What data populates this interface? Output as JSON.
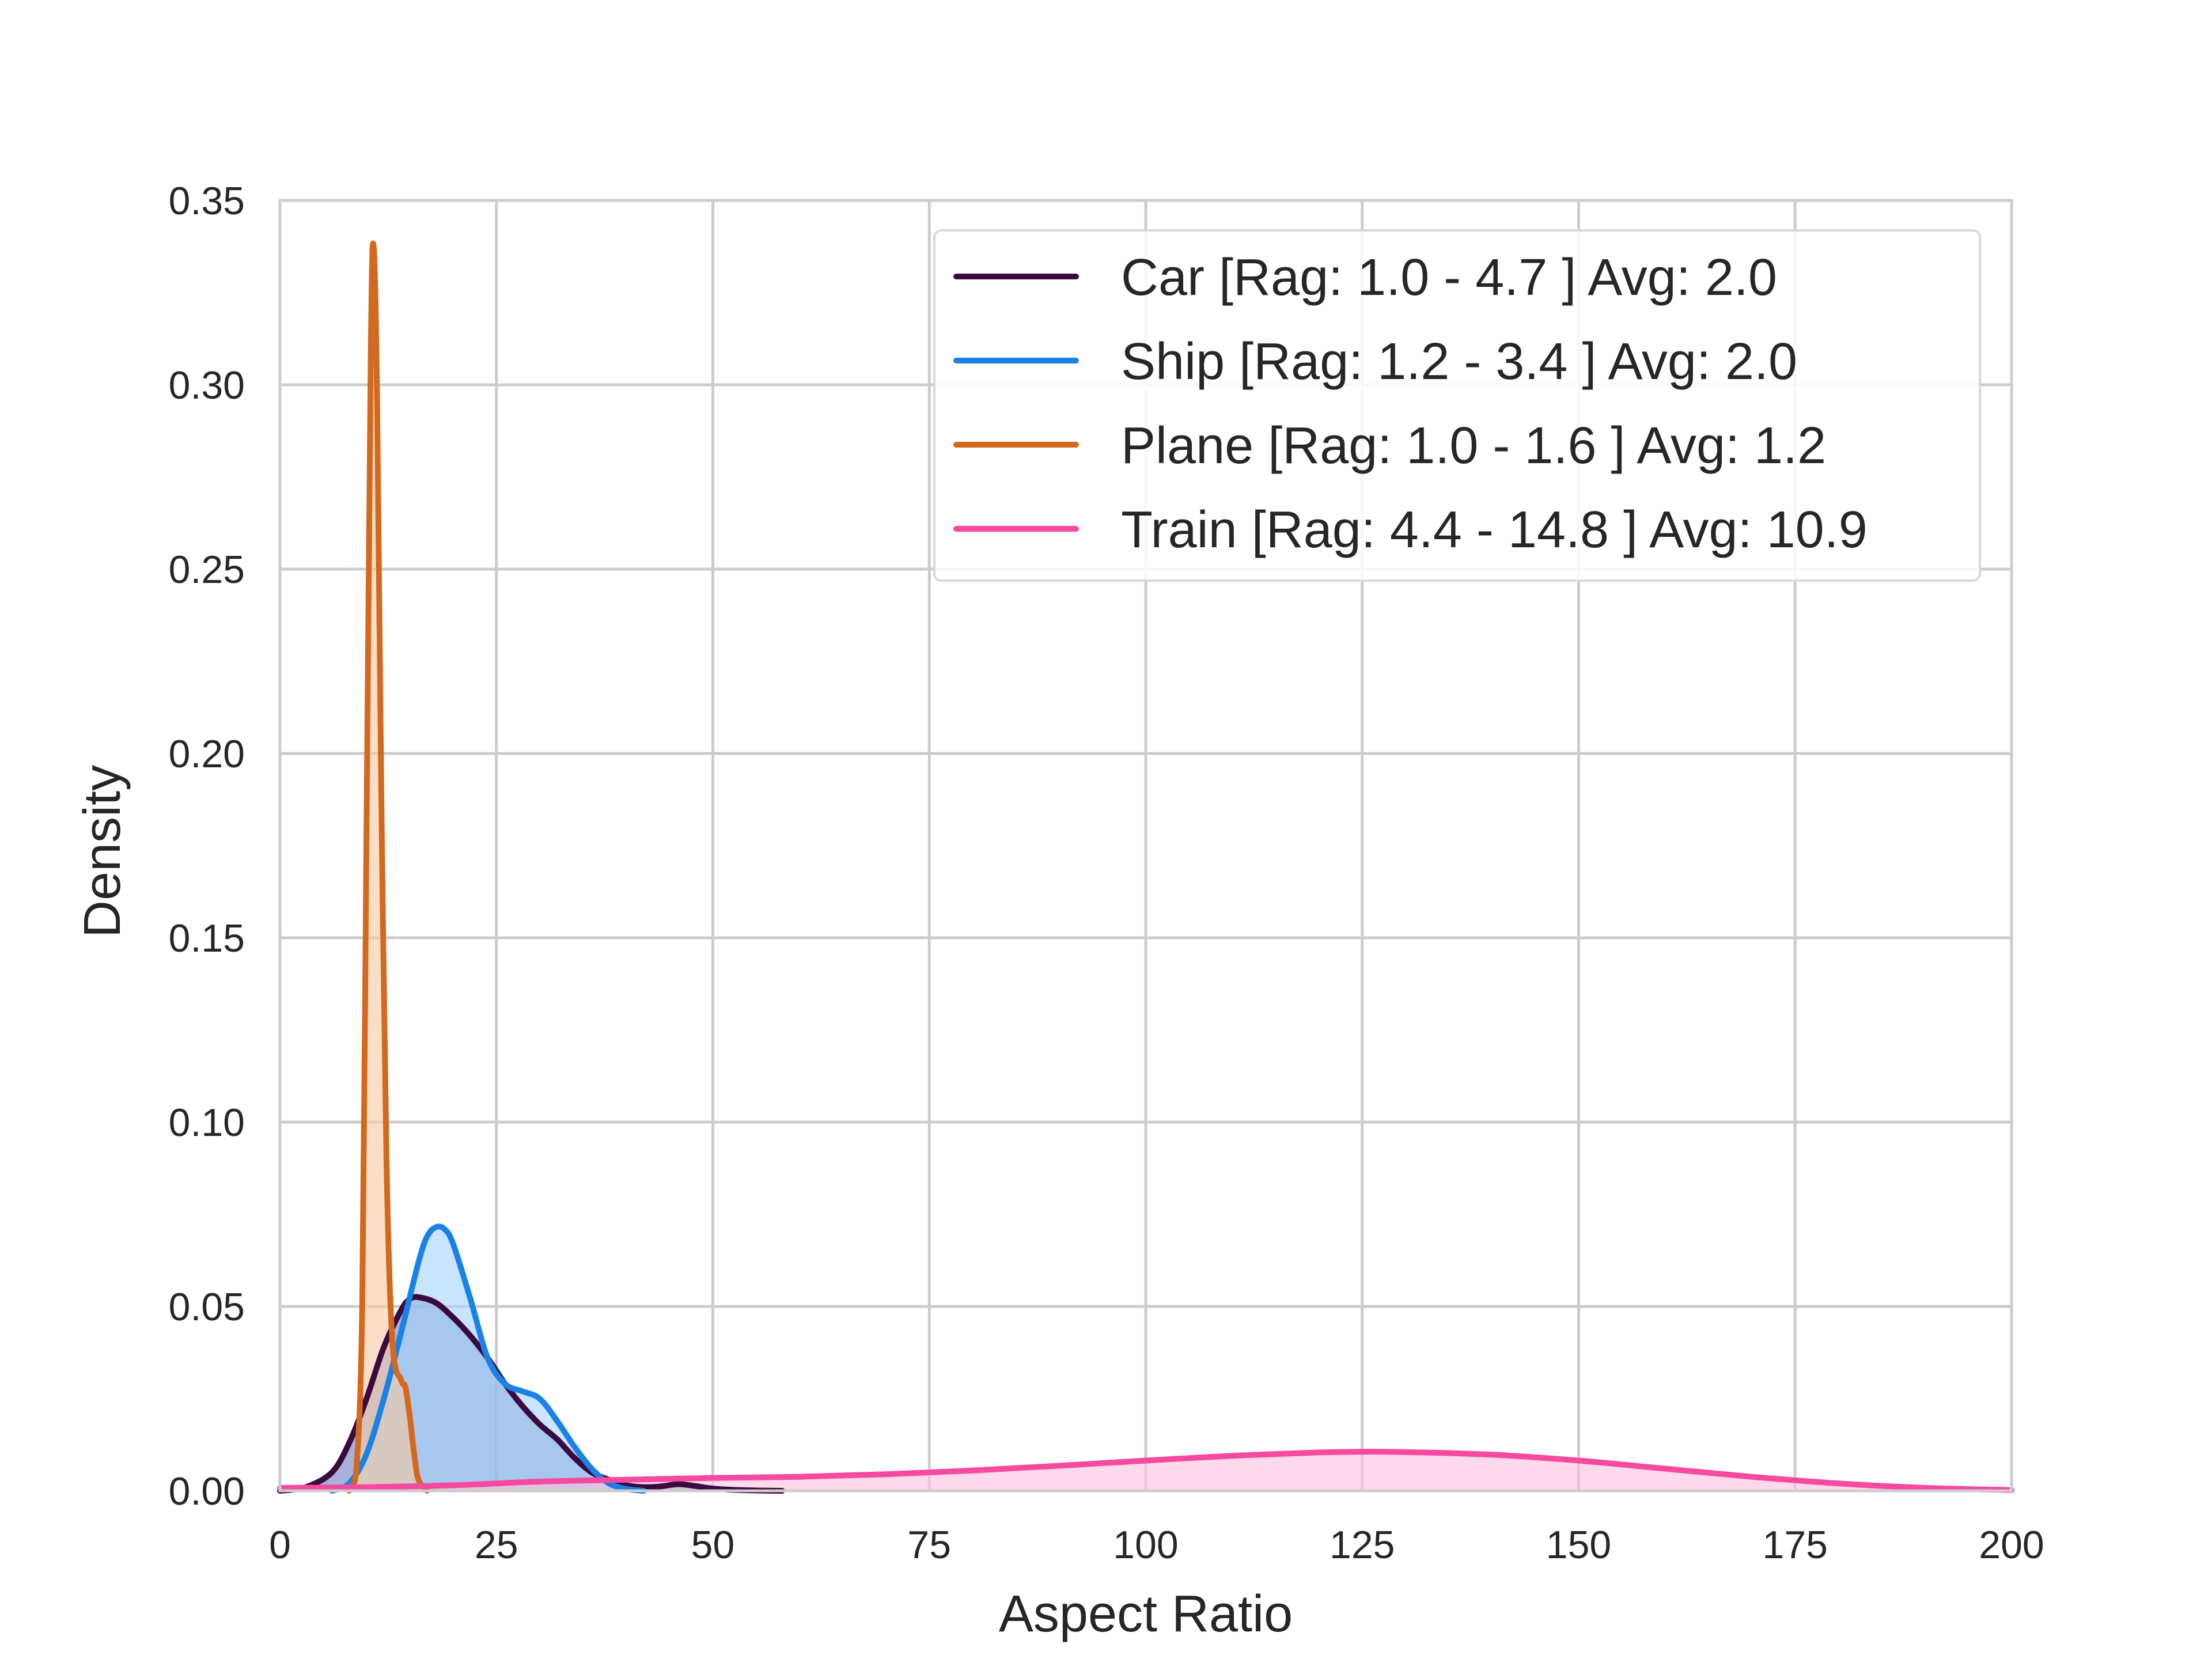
{
  "chart_data": {
    "type": "area",
    "xlabel": "Aspect Ratio",
    "ylabel": "Density",
    "xlim": [
      0,
      200
    ],
    "ylim": [
      0,
      0.35
    ],
    "xticks": [
      0,
      25,
      50,
      75,
      100,
      125,
      150,
      175,
      200
    ],
    "xtick_labels": [
      "0",
      "25",
      "50",
      "75",
      "100",
      "125",
      "150",
      "175",
      "200"
    ],
    "yticks": [
      0,
      0.05,
      0.1,
      0.15,
      0.2,
      0.25,
      0.3,
      0.35
    ],
    "ytick_labels": [
      "0.00",
      "0.05",
      "0.10",
      "0.15",
      "0.20",
      "0.25",
      "0.30",
      "0.35"
    ],
    "grid": true,
    "legend_position": "top-right",
    "series": [
      {
        "name": "Car [Rag: 1.0 - 4.7 ] Avg: 2.0",
        "color": "#3b0a3f",
        "fill": "#6f82c4",
        "points": [
          [
            0,
            0
          ],
          [
            3,
            0.001
          ],
          [
            6,
            0.005
          ],
          [
            8,
            0.013
          ],
          [
            10,
            0.025
          ],
          [
            12,
            0.039
          ],
          [
            14,
            0.049
          ],
          [
            15,
            0.052
          ],
          [
            16,
            0.0525
          ],
          [
            18,
            0.051
          ],
          [
            20,
            0.047
          ],
          [
            22,
            0.042
          ],
          [
            24,
            0.036
          ],
          [
            26,
            0.029
          ],
          [
            28,
            0.023
          ],
          [
            30,
            0.018
          ],
          [
            32,
            0.014
          ],
          [
            34,
            0.009
          ],
          [
            36,
            0.005
          ],
          [
            38,
            0.003
          ],
          [
            40,
            0.0015
          ],
          [
            42,
            0.001
          ],
          [
            44,
            0.0012
          ],
          [
            46,
            0.0018
          ],
          [
            48,
            0.0013
          ],
          [
            50,
            0.0006
          ],
          [
            53,
            0.0002
          ],
          [
            58,
            0
          ]
        ]
      },
      {
        "name": "Ship [Rag: 1.2 - 3.4 ] Avg: 2.0",
        "color": "#1a82e6",
        "fill": "#a8d4fb",
        "points": [
          [
            6,
            0
          ],
          [
            8,
            0.002
          ],
          [
            10,
            0.01
          ],
          [
            12,
            0.025
          ],
          [
            14,
            0.043
          ],
          [
            16,
            0.062
          ],
          [
            17,
            0.069
          ],
          [
            18,
            0.0715
          ],
          [
            19,
            0.071
          ],
          [
            20,
            0.067
          ],
          [
            22,
            0.052
          ],
          [
            24,
            0.036
          ],
          [
            26,
            0.029
          ],
          [
            28,
            0.027
          ],
          [
            30,
            0.025
          ],
          [
            32,
            0.019
          ],
          [
            34,
            0.012
          ],
          [
            36,
            0.006
          ],
          [
            38,
            0.002
          ],
          [
            40,
            0.0005
          ],
          [
            42,
            0
          ]
        ]
      },
      {
        "name": "Plane [Rag: 1.0 - 1.6 ] Avg: 1.2",
        "color": "#d2691e",
        "fill": "#f7c9a3",
        "points": [
          [
            8,
            0
          ],
          [
            8.8,
            0.005
          ],
          [
            9.5,
            0.05
          ],
          [
            10,
            0.18
          ],
          [
            10.5,
            0.31
          ],
          [
            10.8,
            0.338
          ],
          [
            11.2,
            0.3
          ],
          [
            11.7,
            0.19
          ],
          [
            12.3,
            0.09
          ],
          [
            13,
            0.04
          ],
          [
            14,
            0.03
          ],
          [
            14.5,
            0.028
          ],
          [
            15,
            0.02
          ],
          [
            15.5,
            0.01
          ],
          [
            16,
            0.003
          ],
          [
            17,
            0
          ]
        ]
      },
      {
        "name": "Train [Rag: 4.4 - 14.8 ] Avg: 10.9",
        "color": "#f54aa0",
        "fill": "#fbc4df",
        "points": [
          [
            0,
            0.0008
          ],
          [
            10,
            0.001
          ],
          [
            20,
            0.0015
          ],
          [
            30,
            0.0025
          ],
          [
            40,
            0.003
          ],
          [
            50,
            0.0035
          ],
          [
            60,
            0.0038
          ],
          [
            70,
            0.0045
          ],
          [
            80,
            0.0055
          ],
          [
            90,
            0.0068
          ],
          [
            100,
            0.0082
          ],
          [
            110,
            0.0095
          ],
          [
            120,
            0.0104
          ],
          [
            125,
            0.0106
          ],
          [
            130,
            0.0105
          ],
          [
            140,
            0.0098
          ],
          [
            150,
            0.0082
          ],
          [
            160,
            0.006
          ],
          [
            170,
            0.0038
          ],
          [
            180,
            0.002
          ],
          [
            190,
            0.0008
          ],
          [
            200,
            0.0002
          ]
        ]
      }
    ]
  }
}
